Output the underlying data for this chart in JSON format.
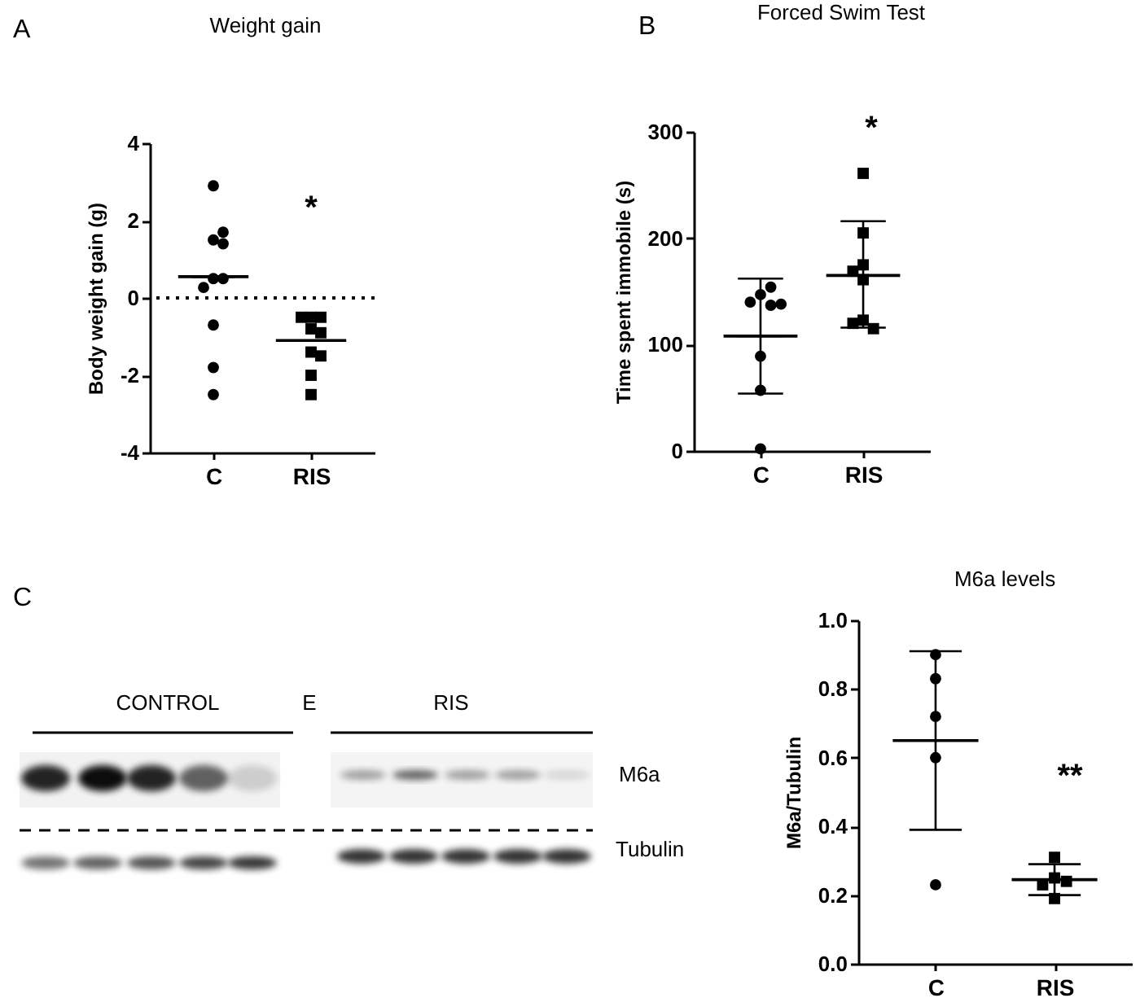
{
  "chart_data": [
    {
      "type": "scatter",
      "title": "Weight gain",
      "ylabel": "Body weight gain (g)",
      "categories": [
        "C",
        "RIS"
      ],
      "ylim": [
        -4,
        4
      ],
      "yticks": [
        -4,
        -2,
        0,
        2,
        4
      ],
      "grid": false,
      "ref_lines": [
        {
          "axis": "y",
          "value": 0,
          "line_style": "dotted",
          "color": "#000000"
        }
      ],
      "annotations": [
        "A",
        "*"
      ],
      "series": [
        {
          "type": "scatter",
          "marker": "circle",
          "color": "#000000",
          "x": [
            "C",
            "C",
            "C",
            "C",
            "C",
            "C",
            "C",
            "C",
            "C",
            "C"
          ],
          "values": [
            2.9,
            1.5,
            1.7,
            1.4,
            0.5,
            0.5,
            0.27,
            -0.7,
            -1.8,
            -2.5
          ]
        },
        {
          "type": "scatter",
          "marker": "square",
          "color": "#000000",
          "x": [
            "RIS",
            "RIS",
            "RIS",
            "RIS",
            "RIS",
            "RIS",
            "RIS",
            "RIS",
            "RIS"
          ],
          "values": [
            -0.5,
            -0.5,
            -0.5,
            -0.8,
            -0.9,
            -1.4,
            -1.5,
            -2.0,
            -2.5
          ]
        },
        {
          "type": "box",
          "color": "#000000",
          "boxes": [
            {
              "low": 0.55,
              "q1": 0.55,
              "median": 0.55,
              "q3": 0.55,
              "high": 0.55
            },
            {
              "low": -1.1,
              "q1": -1.1,
              "median": -1.1,
              "q3": -1.1,
              "high": -1.1
            }
          ]
        }
      ]
    },
    {
      "type": "scatter",
      "title": "Forced Swim Test",
      "ylabel": "Time spent immobile (s)",
      "categories": [
        "C",
        "RIS"
      ],
      "ylim": [
        0,
        300
      ],
      "yticks": [
        0,
        100,
        200,
        300
      ],
      "grid": false,
      "annotations": [
        "B",
        "*"
      ],
      "series": [
        {
          "type": "scatter",
          "marker": "circle",
          "color": "#000000",
          "x": [
            "C",
            "C",
            "C",
            "C",
            "C",
            "C",
            "C",
            "C"
          ],
          "values": [
            147,
            154,
            137,
            140,
            138,
            89,
            57,
            2
          ]
        },
        {
          "type": "scatter",
          "marker": "square",
          "color": "#000000",
          "x": [
            "RIS",
            "RIS",
            "RIS",
            "RIS",
            "RIS",
            "RIS",
            "RIS",
            "RIS"
          ],
          "values": [
            261,
            205,
            175,
            161,
            169,
            123,
            115,
            120
          ]
        },
        {
          "type": "box",
          "color": "#000000",
          "boxes": [
            {
              "low": 54,
              "q1": 108,
              "median": 108,
              "q3": 108,
              "high": 162
            },
            {
              "low": 116,
              "q1": 165,
              "median": 165,
              "q3": 165,
              "high": 216
            }
          ]
        }
      ]
    },
    {
      "type": "other",
      "annotations": [
        "C",
        "CONTROL",
        "E",
        "RIS",
        "M6a",
        "Tubulin"
      ]
    },
    {
      "type": "scatter",
      "title": "M6a levels",
      "ylabel": "M6a/Tubulin",
      "categories": [
        "C",
        "RIS"
      ],
      "ylim": [
        0,
        1
      ],
      "yticks": [
        {
          "value": 0,
          "label": "0.0"
        },
        {
          "value": 0.2,
          "label": "0.2"
        },
        {
          "value": 0.4,
          "label": "0.4"
        },
        {
          "value": 0.6,
          "label": "0.6"
        },
        {
          "value": 0.8,
          "label": "0.8"
        },
        {
          "value": 1,
          "label": "1.0"
        }
      ],
      "grid": false,
      "annotations": [
        "**"
      ],
      "series": [
        {
          "type": "scatter",
          "marker": "circle",
          "color": "#000000",
          "x": [
            "C",
            "C",
            "C",
            "C",
            "C"
          ],
          "values": [
            0.9,
            0.83,
            0.72,
            0.6,
            0.23
          ]
        },
        {
          "type": "scatter",
          "marker": "square",
          "color": "#000000",
          "x": [
            "RIS",
            "RIS",
            "RIS",
            "RIS",
            "RIS"
          ],
          "values": [
            0.31,
            0.25,
            0.24,
            0.23,
            0.19
          ]
        },
        {
          "type": "box",
          "color": "#000000",
          "boxes": [
            {
              "low": 0.39,
              "q1": 0.65,
              "median": 0.65,
              "q3": 0.65,
              "high": 0.91
            },
            {
              "low": 0.2,
              "q1": 0.245,
              "median": 0.245,
              "q3": 0.245,
              "high": 0.29
            }
          ]
        }
      ]
    }
  ]
}
